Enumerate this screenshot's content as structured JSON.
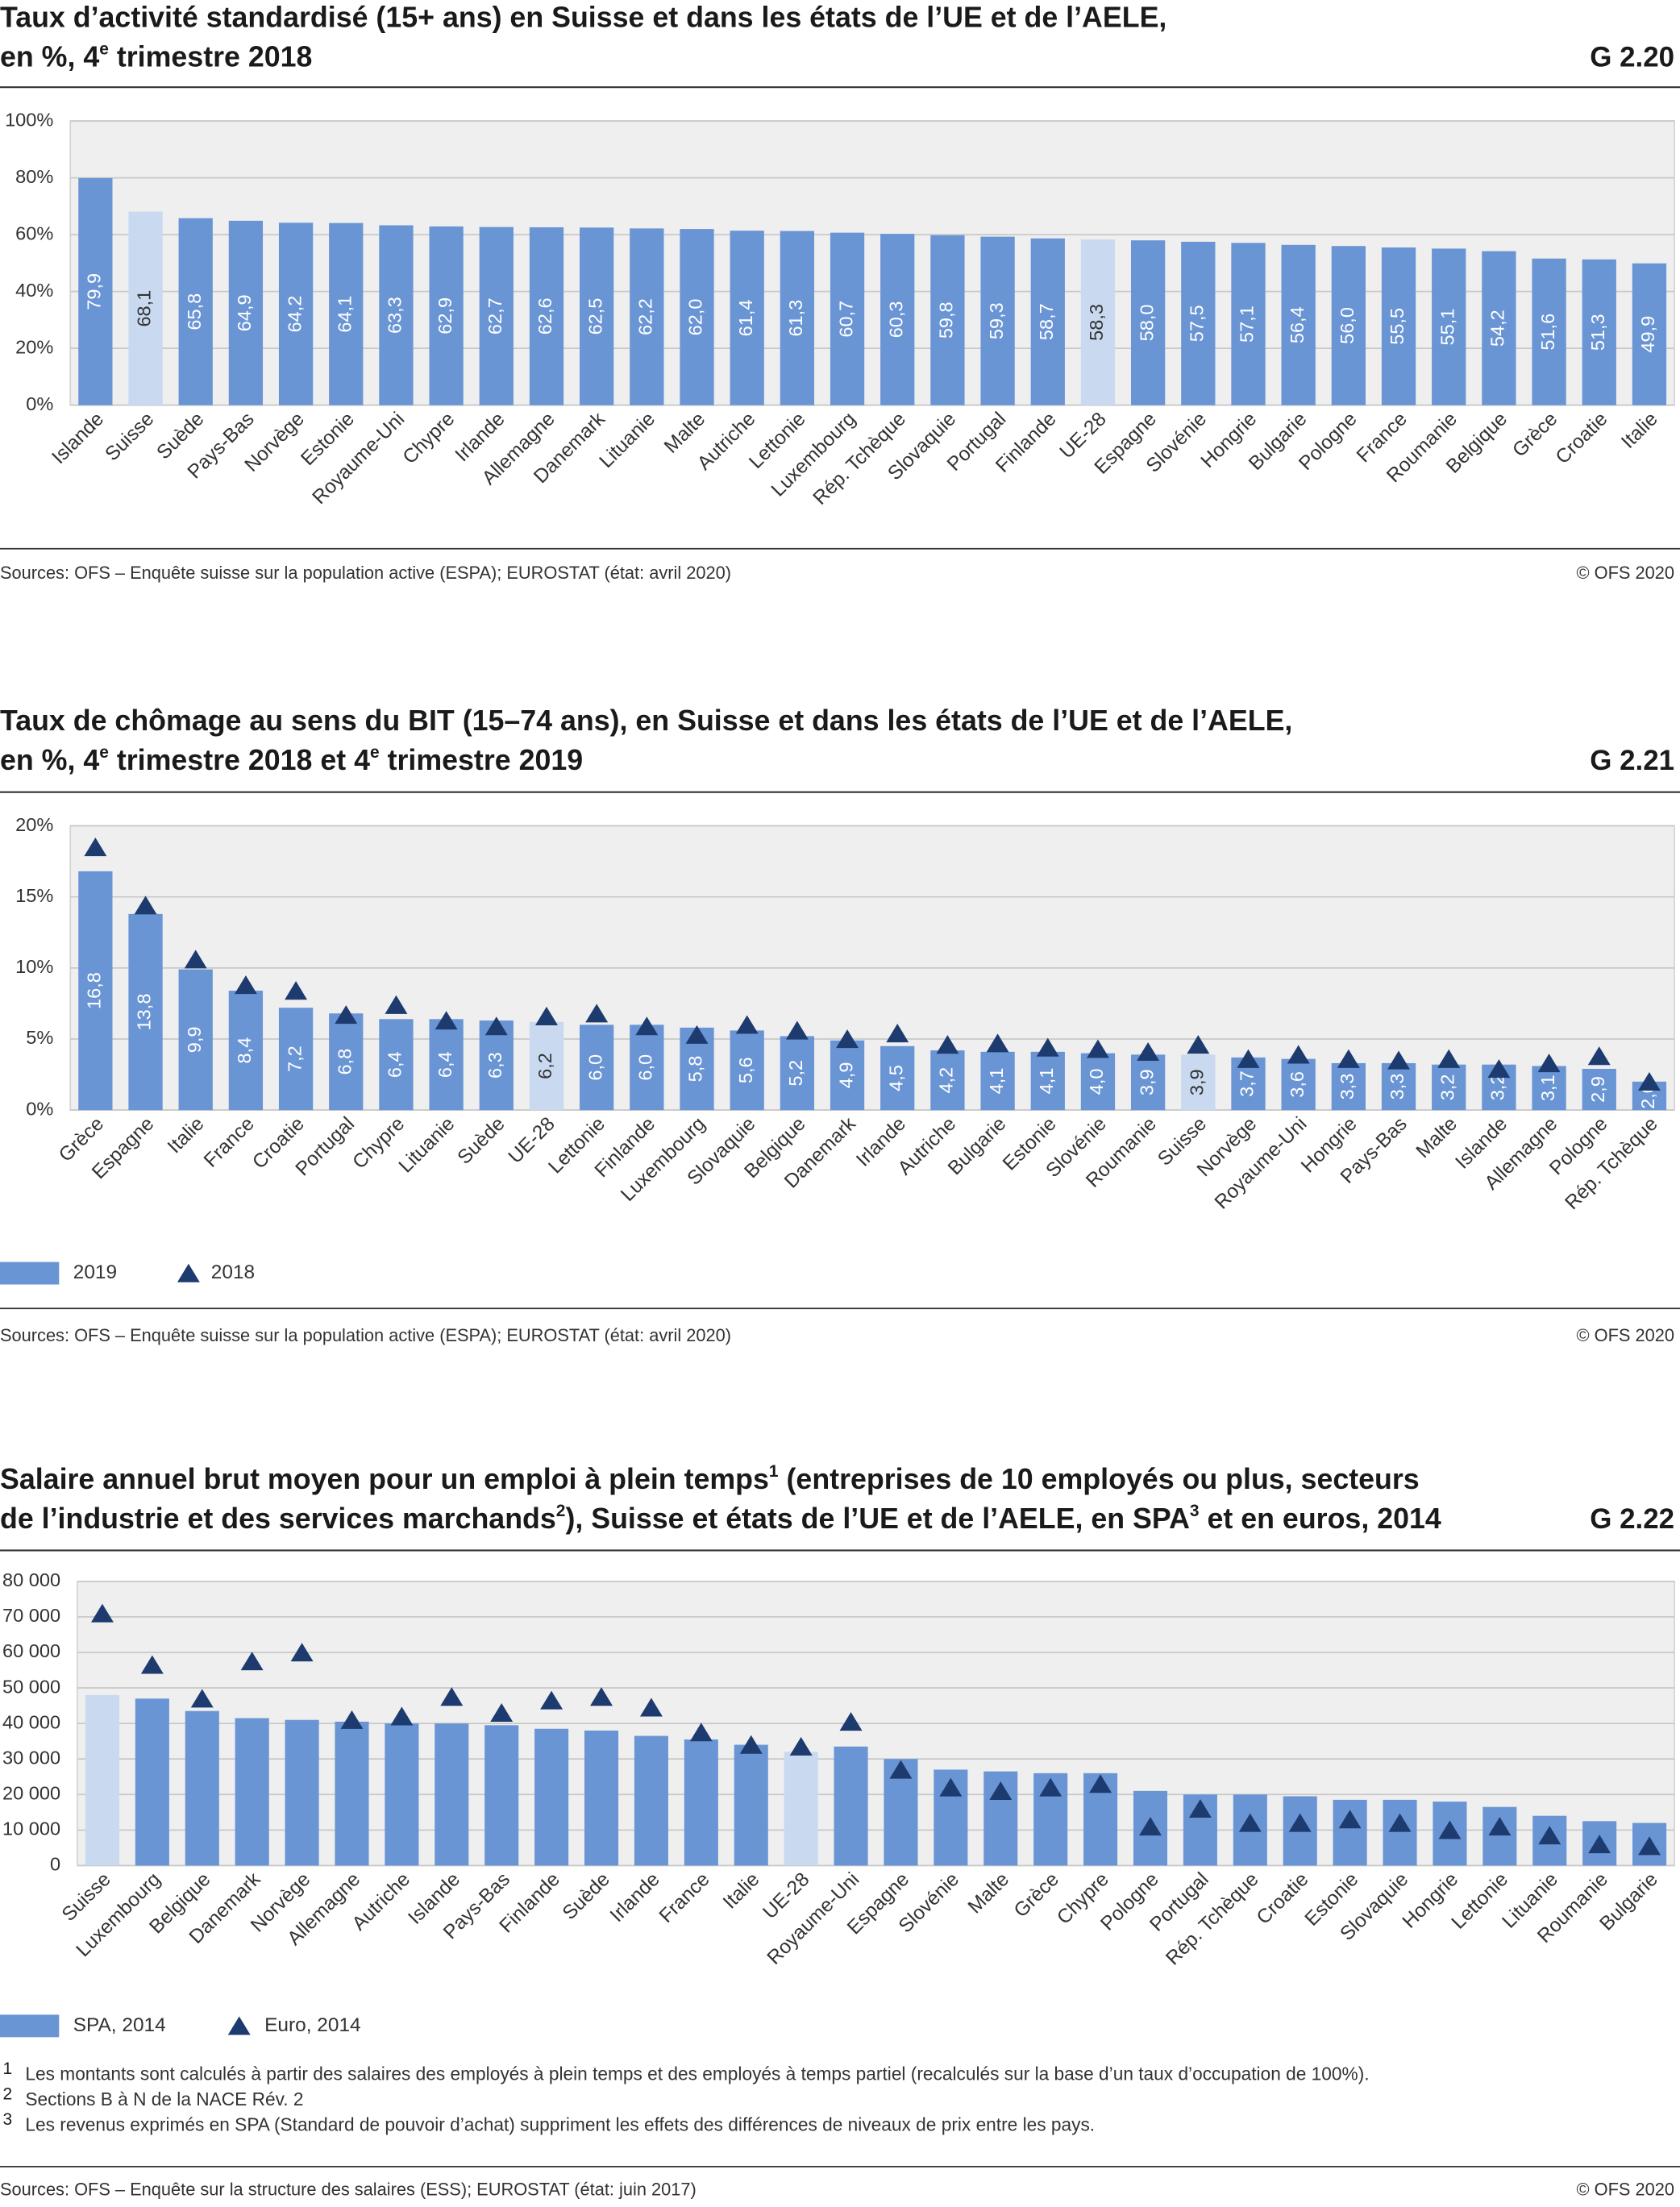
{
  "chart_data": [
    {
      "type": "bar",
      "title": [
        [
          "Taux d’activité standardisé (15+ ans) en Suisse et dans les états de l’UE et de l’AELE,"
        ],
        [
          "en %, 4",
          {
            "sup": "e"
          },
          " trimestre 2018"
        ]
      ],
      "chart_id": "G 2.20",
      "categories": [
        "Islande",
        "Suisse",
        "Suède",
        "Pays-Bas",
        "Norvège",
        "Estonie",
        "Royaume-Uni",
        "Chypre",
        "Irlande",
        "Allemagne",
        "Danemark",
        "Lituanie",
        "Malte",
        "Autriche",
        "Lettonie",
        "Luxembourg",
        "Rép. Tchèque",
        "Slovaquie",
        "Portugal",
        "Finlande",
        "UE-28",
        "Espagne",
        "Slovénie",
        "Hongrie",
        "Bulgarie",
        "Pologne",
        "France",
        "Roumanie",
        "Belgique",
        "Grèce",
        "Croatie",
        "Italie"
      ],
      "values": [
        79.9,
        68.1,
        65.8,
        64.9,
        64.2,
        64.1,
        63.3,
        62.9,
        62.7,
        62.6,
        62.5,
        62.2,
        62.0,
        61.4,
        61.3,
        60.7,
        60.3,
        59.8,
        59.3,
        58.7,
        58.3,
        58.0,
        57.5,
        57.1,
        56.4,
        56.0,
        55.5,
        55.1,
        54.2,
        51.6,
        51.3,
        49.9
      ],
      "value_labels": [
        "79,9",
        "68,1",
        "65,8",
        "64,9",
        "64,2",
        "64,1",
        "63,3",
        "62,9",
        "62,7",
        "62,6",
        "62,5",
        "62,2",
        "62,0",
        "61,4",
        "61,3",
        "60,7",
        "60,3",
        "59,8",
        "59,3",
        "58,7",
        "58,3",
        "58,0",
        "57,5",
        "57,1",
        "56,4",
        "56,0",
        "55,5",
        "55,1",
        "54,2",
        "51,6",
        "51,3",
        "49,9"
      ],
      "colors": [
        "#6a95d5",
        "#c8d9f0",
        "#6a95d5",
        "#6a95d5",
        "#6a95d5",
        "#6a95d5",
        "#6a95d5",
        "#6a95d5",
        "#6a95d5",
        "#6a95d5",
        "#6a95d5",
        "#6a95d5",
        "#6a95d5",
        "#6a95d5",
        "#6a95d5",
        "#6a95d5",
        "#6a95d5",
        "#6a95d5",
        "#6a95d5",
        "#6a95d5",
        "#c8d9f0",
        "#6a95d5",
        "#6a95d5",
        "#6a95d5",
        "#6a95d5",
        "#6a95d5",
        "#6a95d5",
        "#6a95d5",
        "#6a95d5",
        "#6a95d5",
        "#6a95d5",
        "#6a95d5"
      ],
      "ylim": [
        0,
        100
      ],
      "yticks": [
        {
          "value": 0,
          "label": "0%"
        },
        {
          "value": 20,
          "label": "20%"
        },
        {
          "value": 40,
          "label": "40%"
        },
        {
          "value": 60,
          "label": "60%"
        },
        {
          "value": 80,
          "label": "80%"
        },
        {
          "value": 100,
          "label": "100%"
        }
      ],
      "grid": true,
      "source": "Sources: OFS – Enquête suisse sur la population active (ESPA); EUROSTAT (état: avril 2020)",
      "copyright": "© OFS 2020"
    },
    {
      "type": "combo",
      "title": [
        [
          "Taux de chômage au sens du BIT (15–74 ans), en Suisse et dans les états de l’UE et de l’AELE,"
        ],
        [
          "en %, 4",
          {
            "sup": "e"
          },
          " trimestre 2018 et 4",
          {
            "sup": "e"
          },
          " trimestre 2019"
        ]
      ],
      "chart_id": "G 2.21",
      "categories": [
        "Grèce",
        "Espagne",
        "Italie",
        "France",
        "Croatie",
        "Portugal",
        "Chypre",
        "Lituanie",
        "Suède",
        "UE-28",
        "Lettonie",
        "Finlande",
        "Luxembourg",
        "Slovaquie",
        "Belgique",
        "Danemark",
        "Irlande",
        "Autriche",
        "Bulgarie",
        "Estonie",
        "Slovénie",
        "Roumanie",
        "Suisse",
        "Norvège",
        "Royaume-Uni",
        "Hongrie",
        "Pays-Bas",
        "Malte",
        "Islande",
        "Allemagne",
        "Pologne",
        "Rép. Tchèque"
      ],
      "series": [
        {
          "name": "2019",
          "color": "#6a95d5",
          "colors": [
            "#6a95d5",
            "#6a95d5",
            "#6a95d5",
            "#6a95d5",
            "#6a95d5",
            "#6a95d5",
            "#6a95d5",
            "#6a95d5",
            "#6a95d5",
            "#c8d9f0",
            "#6a95d5",
            "#6a95d5",
            "#6a95d5",
            "#6a95d5",
            "#6a95d5",
            "#6a95d5",
            "#6a95d5",
            "#6a95d5",
            "#6a95d5",
            "#6a95d5",
            "#6a95d5",
            "#6a95d5",
            "#c8d9f0",
            "#6a95d5",
            "#6a95d5",
            "#6a95d5",
            "#6a95d5",
            "#6a95d5",
            "#6a95d5",
            "#6a95d5",
            "#6a95d5",
            "#6a95d5"
          ],
          "values": [
            16.8,
            13.8,
            9.9,
            8.4,
            7.2,
            6.8,
            6.4,
            6.4,
            6.3,
            6.2,
            6.0,
            6.0,
            5.8,
            5.6,
            5.2,
            4.9,
            4.5,
            4.2,
            4.1,
            4.1,
            4.0,
            3.9,
            3.9,
            3.7,
            3.6,
            3.3,
            3.3,
            3.2,
            3.2,
            3.1,
            2.9,
            2.0
          ],
          "value_labels": [
            "16,8",
            "13,8",
            "9,9",
            "8,4",
            "7,2",
            "6,8",
            "6,4",
            "6,4",
            "6,3",
            "6,2",
            "6,0",
            "6,0",
            "5,8",
            "5,6",
            "5,2",
            "4,9",
            "4,5",
            "4,2",
            "4,1",
            "4,1",
            "4,0",
            "3,9",
            "3,9",
            "3,7",
            "3,6",
            "3,3",
            "3,3",
            "3,2",
            "3,2",
            "3,1",
            "2,9",
            "2,0"
          ]
        },
        {
          "name": "2018",
          "color": "#1d3b6e",
          "marker": "triangle",
          "values": [
            18.5,
            14.4,
            10.6,
            8.8,
            8.4,
            6.7,
            7.4,
            6.3,
            5.9,
            6.6,
            6.8,
            5.9,
            5.3,
            6.0,
            5.6,
            5.0,
            5.4,
            4.6,
            4.7,
            4.4,
            4.3,
            4.1,
            4.6,
            3.6,
            3.9,
            3.6,
            3.5,
            3.6,
            2.9,
            3.3,
            3.8,
            2.0
          ]
        }
      ],
      "ylim": [
        0,
        20
      ],
      "yticks": [
        {
          "value": 0,
          "label": "0%"
        },
        {
          "value": 5,
          "label": "5%"
        },
        {
          "value": 10,
          "label": "10%"
        },
        {
          "value": 15,
          "label": "15%"
        },
        {
          "value": 20,
          "label": "20%"
        }
      ],
      "grid": true,
      "legend": "bottom-left",
      "source": "Sources: OFS – Enquête suisse sur la population active (ESPA); EUROSTAT (état: avril 2020)",
      "copyright": "© OFS 2020"
    },
    {
      "type": "combo",
      "title": [
        [
          "Salaire annuel brut moyen pour un emploi à plein temps",
          {
            "sup": "1"
          },
          " (entreprises de 10 employés ou plus, secteurs"
        ],
        [
          "de l’industrie et des services marchands",
          {
            "sup": "2"
          },
          "), Suisse et états de l’UE et de l’AELE, en SPA",
          {
            "sup": "3"
          },
          " et en euros, 2014"
        ]
      ],
      "chart_id": "G 2.22",
      "categories": [
        "Suisse",
        "Luxembourg",
        "Belgique",
        "Danemark",
        "Norvège",
        "Allemagne",
        "Autriche",
        "Islande",
        "Pays-Bas",
        "Finlande",
        "Suède",
        "Irlande",
        "France",
        "Italie",
        "UE-28",
        "Royaume-Uni",
        "Espagne",
        "Slovénie",
        "Malte",
        "Grèce",
        "Chypre",
        "Pologne",
        "Portugal",
        "Rép. Tchèque",
        "Croatie",
        "Estonie",
        "Slovaquie",
        "Hongrie",
        "Lettonie",
        "Lituanie",
        "Roumanie",
        "Bulgarie"
      ],
      "series": [
        {
          "name": "SPA, 2014",
          "color": "#6a95d5",
          "colors": [
            "#c8d9f0",
            "#6a95d5",
            "#6a95d5",
            "#6a95d5",
            "#6a95d5",
            "#6a95d5",
            "#6a95d5",
            "#6a95d5",
            "#6a95d5",
            "#6a95d5",
            "#6a95d5",
            "#6a95d5",
            "#6a95d5",
            "#6a95d5",
            "#c8d9f0",
            "#6a95d5",
            "#6a95d5",
            "#6a95d5",
            "#6a95d5",
            "#6a95d5",
            "#6a95d5",
            "#6a95d5",
            "#6a95d5",
            "#6a95d5",
            "#6a95d5",
            "#6a95d5",
            "#6a95d5",
            "#6a95d5",
            "#6a95d5",
            "#6a95d5",
            "#6a95d5",
            "#6a95d5"
          ],
          "values": [
            48000,
            47000,
            43500,
            41500,
            41000,
            40500,
            40000,
            40000,
            39500,
            38500,
            38000,
            36500,
            35500,
            34000,
            32000,
            33500,
            30000,
            27000,
            26500,
            26000,
            26000,
            21000,
            20000,
            20000,
            19500,
            18500,
            18500,
            18000,
            16500,
            14000,
            12500,
            12000
          ]
        },
        {
          "name": "Euro, 2014",
          "color": "#1d3b6e",
          "marker": "triangle",
          "values": [
            71000,
            56500,
            47000,
            57500,
            60000,
            41000,
            42000,
            47500,
            43000,
            46500,
            47500,
            44500,
            37500,
            34000,
            33500,
            40500,
            27000,
            22000,
            21000,
            22000,
            23000,
            11000,
            16000,
            12000,
            12000,
            13000,
            12000,
            10000,
            11000,
            8500,
            6000,
            5500
          ]
        }
      ],
      "ylim": [
        0,
        80000
      ],
      "yticks": [
        0,
        {
          "value": 10000,
          "label": "10 000"
        },
        {
          "value": 20000,
          "label": "20 000"
        },
        {
          "value": 30000,
          "label": "30 000"
        },
        {
          "value": 40000,
          "label": "40 000"
        },
        {
          "value": 50000,
          "label": "50 000"
        },
        {
          "value": 60000,
          "label": "60 000"
        },
        {
          "value": 70000,
          "label": "70 000"
        },
        {
          "value": 80000,
          "label": "80 000"
        }
      ],
      "grid": true,
      "legend": "bottom-left",
      "footnotes": [
        {
          "mark": "1",
          "text": "Les montants sont calculés à partir des salaires des employés à plein temps et des employés à temps partiel (recalculés sur la base d’un taux d’occupation de 100%)."
        },
        {
          "mark": "2",
          "text": "Sections B à N de la NACE Rév. 2"
        },
        {
          "mark": "3",
          "text": "Les revenus exprimés en SPA (Standard de pouvoir d’achat) suppriment les effets des différences de niveaux de prix entre les pays."
        }
      ],
      "source": "Sources: OFS – Enquête sur la structure des salaires (ESS); EUROSTAT (état: juin 2017)",
      "copyright": "© OFS 2020"
    }
  ]
}
